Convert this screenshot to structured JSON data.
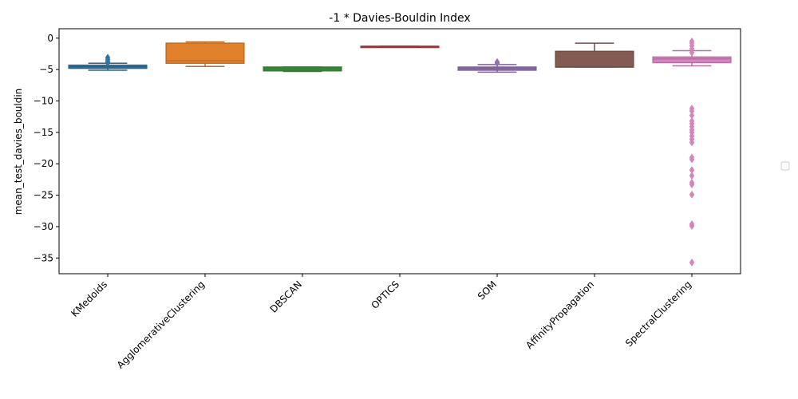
{
  "chart_data": {
    "type": "box",
    "title": "-1 * Davies-Bouldin Index",
    "xlabel": "",
    "ylabel": "mean_test_davies_bouldin",
    "ylim": [
      -37.5,
      1.5
    ],
    "yticks": [
      0,
      -5,
      -10,
      -15,
      -20,
      -25,
      -30,
      -35
    ],
    "ytick_labels": [
      "0",
      "−5",
      "−10",
      "−15",
      "−20",
      "−25",
      "−30",
      "−35"
    ],
    "grid": false,
    "legend": {
      "placement": "center-right",
      "entries": []
    },
    "categories": [
      "KMedoids",
      "AgglomerativeClustering",
      "DBSCAN",
      "OPTICS",
      "SOM",
      "AffinityPropagation",
      "SpectralClustering"
    ],
    "boxes": [
      {
        "category": "KMedoids",
        "color": "#3274a1",
        "whisker_low": -5.1,
        "q1": -4.8,
        "median": -4.6,
        "q3": -4.3,
        "whisker_high": -4.0,
        "outliers": [
          -3.1,
          -3.4,
          -3.7,
          -3.9
        ]
      },
      {
        "category": "AgglomerativeClustering",
        "color": "#e1812c",
        "whisker_low": -4.5,
        "q1": -4.0,
        "median": -3.6,
        "q3": -0.8,
        "whisker_high": -0.6,
        "outliers": []
      },
      {
        "category": "DBSCAN",
        "color": "#3a923a",
        "whisker_low": -5.3,
        "q1": -5.2,
        "median": -4.9,
        "q3": -4.6,
        "whisker_high": -4.6,
        "outliers": []
      },
      {
        "category": "OPTICS",
        "color": "#c03d3e",
        "whisker_low": -1.3,
        "q1": -1.3,
        "median": -1.3,
        "q3": -1.3,
        "whisker_high": -1.3,
        "outliers": []
      },
      {
        "category": "SOM",
        "color": "#9372b2",
        "whisker_low": -5.4,
        "q1": -5.1,
        "median": -4.8,
        "q3": -4.6,
        "whisker_high": -4.2,
        "outliers": [
          -3.8,
          -4.0
        ]
      },
      {
        "category": "AffinityPropagation",
        "color": "#845b53",
        "whisker_low": -4.6,
        "q1": -4.6,
        "median": -4.6,
        "q3": -2.1,
        "whisker_high": -0.8,
        "outliers": []
      },
      {
        "category": "SpectralClustering",
        "color": "#d684bd",
        "whisker_low": -4.4,
        "q1": -3.9,
        "median": -3.3,
        "q3": -3.0,
        "whisker_high": -2.0,
        "outliers": [
          -0.5,
          -0.8,
          -1.2,
          -1.7,
          -2.3,
          -11.2,
          -11.6,
          -12.3,
          -13.2,
          -13.6,
          -14.1,
          -14.6,
          -15.0,
          -15.6,
          -16.1,
          -16.6,
          -19.0,
          -19.3,
          -21.0,
          -21.9,
          -23.0,
          -23.3,
          -24.9,
          -29.6,
          -29.9,
          -35.7
        ]
      }
    ]
  }
}
